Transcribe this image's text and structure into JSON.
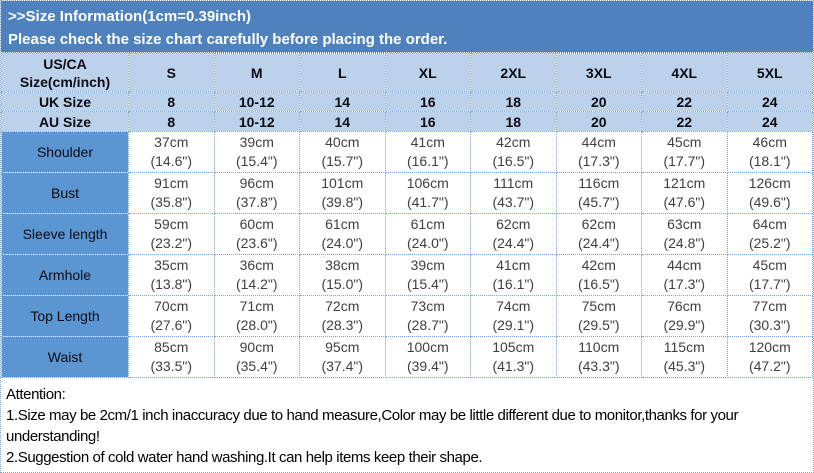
{
  "banner": {
    "line1": ">>Size Information(1cm=0.39inch)",
    "line2": "Please check the size chart carefully before placing the order."
  },
  "table": {
    "corner": {
      "line1": "US/CA",
      "line2": "Size(cm/inch)"
    },
    "size_labels": [
      "S",
      "M",
      "L",
      "XL",
      "2XL",
      "3XL",
      "4XL",
      "5XL"
    ],
    "uk_row": {
      "label": "UK Size",
      "values": [
        "8",
        "10-12",
        "14",
        "16",
        "18",
        "20",
        "22",
        "24"
      ]
    },
    "au_row": {
      "label": "AU Size",
      "values": [
        "8",
        "10-12",
        "14",
        "16",
        "18",
        "20",
        "22",
        "24"
      ]
    },
    "measurements": [
      {
        "label": "Shoulder",
        "cm": [
          "37cm",
          "39cm",
          "40cm",
          "41cm",
          "42cm",
          "44cm",
          "45cm",
          "46cm"
        ],
        "inch": [
          "(14.6\")",
          "(15.4\")",
          "(15.7\")",
          "(16.1\")",
          "(16.5\")",
          "(17.3\")",
          "(17.7\")",
          "(18.1\")"
        ]
      },
      {
        "label": "Bust",
        "cm": [
          "91cm",
          "96cm",
          "101cm",
          "106cm",
          "111cm",
          "116cm",
          "121cm",
          "126cm"
        ],
        "inch": [
          "(35.8\")",
          "(37.8\")",
          "(39.8\")",
          "(41.7\")",
          "(43.7\")",
          "(45.7\")",
          "(47.6\")",
          "(49.6\")"
        ]
      },
      {
        "label": "Sleeve length",
        "cm": [
          "59cm",
          "60cm",
          "61cm",
          "61cm",
          "62cm",
          "62cm",
          "63cm",
          "64cm"
        ],
        "inch": [
          "(23.2\")",
          "(23.6\")",
          "(24.0\")",
          "(24.0\")",
          "(24.4\")",
          "(24.4\")",
          "(24.8\")",
          "(25.2\")"
        ]
      },
      {
        "label": "Armhole",
        "cm": [
          "35cm",
          "36cm",
          "38cm",
          "39cm",
          "41cm",
          "42cm",
          "44cm",
          "45cm"
        ],
        "inch": [
          "(13.8\")",
          "(14.2\")",
          "(15.0\")",
          "(15.4\")",
          "(16.1\")",
          "(16.5\")",
          "(17.3\")",
          "(17.7\")"
        ]
      },
      {
        "label": "Top Length",
        "cm": [
          "70cm",
          "71cm",
          "72cm",
          "73cm",
          "74cm",
          "75cm",
          "76cm",
          "77cm"
        ],
        "inch": [
          "(27.6\")",
          "(28.0\")",
          "(28.3\")",
          "(28.7\")",
          "(29.1\")",
          "(29.5\")",
          "(29.9\")",
          "(30.3\")"
        ]
      },
      {
        "label": "Waist",
        "cm": [
          "85cm",
          "90cm",
          "95cm",
          "100cm",
          "105cm",
          "110cm",
          "115cm",
          "120cm"
        ],
        "inch": [
          "(33.5\")",
          "(35.4\")",
          "(37.4\")",
          "(39.4\")",
          "(41.3\")",
          "(43.3\")",
          "(45.3\")",
          "(47.2\")"
        ]
      }
    ]
  },
  "attention": {
    "title": "Attention:",
    "line1": "1.Size may be 2cm/1 inch inaccuracy due to hand measure,Color may be little different due to monitor,thanks for your understanding!",
    "line2": "2.Suggestion of cold water hand washing.It can help items keep their shape."
  },
  "colors": {
    "banner_blue": "#4f81bd",
    "header_light_blue": "#bcd2ea",
    "row_label_blue": "#5b96d2",
    "grid_dotted_blue": "#7aa4d6",
    "data_text": "#3f3f3f"
  }
}
